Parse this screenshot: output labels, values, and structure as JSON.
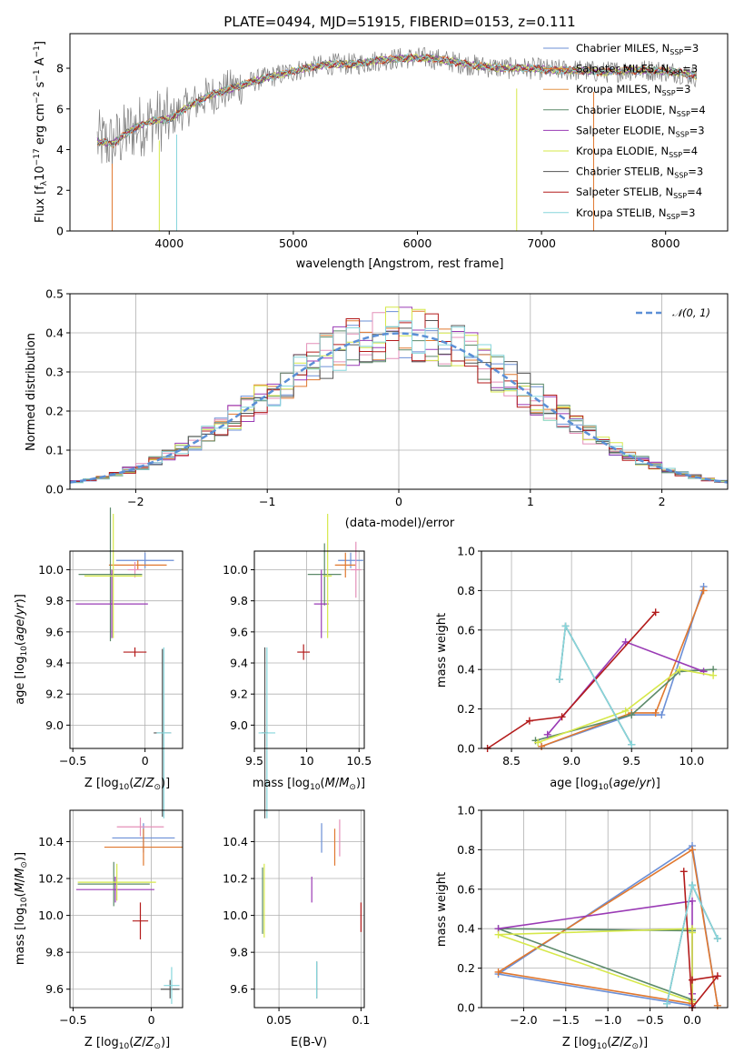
{
  "colors": {
    "Chabrier MILES": "#6b8fd6",
    "Salpeter MILES": "#e0782f",
    "Kroupa MILES": "#e4964a",
    "Chabrier ELODIE": "#5c8a6a",
    "Salpeter ELODIE": "#9a3bb5",
    "Kroupa ELODIE": "#d6e84a",
    "Chabrier STELIB": "#555555",
    "Salpeter STELIB": "#b31b1b",
    "Kroupa STELIB": "#86d6dc",
    "extra_pink": "#e48fb8",
    "gaussian": "#5b8fd6"
  },
  "chart_data": [
    {
      "type": "line",
      "title": "PLATE=0494, MJD=51915, FIBERID=0153, z=0.111",
      "xlabel": "wavelength [Angstrom, rest frame]",
      "ylabel": "Flux [fλ10⁻¹⁷ erg cm⁻² s⁻¹ A⁻¹]",
      "xlim": [
        3200,
        8500
      ],
      "ylim": [
        0,
        9.7
      ],
      "xticks": [
        4000,
        5000,
        6000,
        7000,
        8000
      ],
      "yticks": [
        0,
        2,
        4,
        6,
        8
      ],
      "legend_position": "right",
      "series": [
        {
          "name": "Chabrier MILES, N_SSP=3"
        },
        {
          "name": "Salpeter MILES, N_SSP=3"
        },
        {
          "name": "Kroupa MILES, N_SSP=3"
        },
        {
          "name": "Chabrier ELODIE, N_SSP=4"
        },
        {
          "name": "Salpeter ELODIE, N_SSP=3"
        },
        {
          "name": "Kroupa ELODIE, N_SSP=4"
        },
        {
          "name": "Chabrier STELIB, N_SSP=3"
        },
        {
          "name": "Salpeter STELIB, N_SSP=4"
        },
        {
          "name": "Kroupa STELIB, N_SSP=3"
        }
      ],
      "continuum": {
        "x": [
          3420,
          3550,
          3700,
          3850,
          4000,
          4150,
          4300,
          4500,
          4700,
          4900,
          5100,
          5300,
          5500,
          5700,
          5900,
          6100,
          6300,
          6500,
          6700,
          6900,
          7100,
          7300,
          7500,
          7700,
          7900,
          8100,
          8250
        ],
        "y": [
          4.4,
          4.3,
          5.0,
          5.4,
          5.5,
          6.1,
          6.6,
          7.0,
          7.4,
          7.7,
          8.0,
          8.2,
          8.2,
          8.4,
          8.5,
          8.5,
          8.3,
          8.1,
          8.0,
          8.0,
          7.9,
          7.9,
          7.8,
          7.9,
          7.9,
          7.8,
          7.6
        ]
      }
    },
    {
      "type": "histogram",
      "xlabel": "(data-model)/error",
      "ylabel": "Normed distribution",
      "xlim": [
        -2.5,
        2.5
      ],
      "ylim": [
        0,
        0.5
      ],
      "xticks": [
        -2,
        -1,
        0,
        1,
        2
      ],
      "yticks": [
        0.0,
        0.1,
        0.2,
        0.3,
        0.4,
        0.5
      ],
      "legend": "𝒩(0, 1)",
      "legend_position": "top-right",
      "bin_width": 0.1,
      "grid": true
    },
    {
      "type": "scatter",
      "xlabel": "Z [log₁₀(Z/Z⊙)]",
      "ylabel": "age  [log₁₀(age/yr)]",
      "xlim": [
        -0.52,
        0.26
      ],
      "ylim": [
        8.85,
        10.12
      ],
      "xticks": [
        -0.5,
        0.0
      ],
      "yticks": [
        9.0,
        9.2,
        9.4,
        9.6,
        9.8,
        10.0
      ],
      "points": [
        {
          "x": 0.0,
          "y": 10.06,
          "xerr": 0.2,
          "yerr": 0.05,
          "color": "#6b8fd6"
        },
        {
          "x": -0.05,
          "y": 10.03,
          "xerr": 0.2,
          "yerr": 0.03,
          "color": "#e0782f"
        },
        {
          "x": -0.07,
          "y": 10.0,
          "xerr": 0.05,
          "yerr": 0.05,
          "color": "#e48fb8"
        },
        {
          "x": -0.24,
          "y": 9.97,
          "xerr": 0.22,
          "yerr": 0.43,
          "color": "#5c8a6a"
        },
        {
          "x": -0.23,
          "y": 9.78,
          "xerr": 0.25,
          "yerr": 0.22,
          "color": "#9a3bb5"
        },
        {
          "x": -0.22,
          "y": 9.96,
          "xerr": 0.2,
          "yerr": 0.4,
          "color": "#d6e84a"
        },
        {
          "x": -0.07,
          "y": 9.47,
          "xerr": 0.08,
          "yerr": 0.03,
          "color": "#b31b1b"
        },
        {
          "x": 0.12,
          "y": 8.95,
          "xerr": 0.06,
          "yerr": 0.54,
          "color": "#555555"
        },
        {
          "x": 0.13,
          "y": 8.95,
          "xerr": 0.05,
          "yerr": 0.55,
          "color": "#86d6dc"
        }
      ]
    },
    {
      "type": "scatter",
      "xlabel": "mass [log₁₀(M/M⊙)]",
      "xlim": [
        9.5,
        10.55
      ],
      "ylim": [
        8.85,
        10.12
      ],
      "xticks": [
        9.5,
        10.0,
        10.5
      ],
      "yticks": [
        9.0,
        9.2,
        9.4,
        9.6,
        9.8,
        10.0
      ],
      "points": [
        {
          "x": 10.42,
          "y": 10.06,
          "xerr": 0.12,
          "yerr": 0.05,
          "color": "#6b8fd6"
        },
        {
          "x": 10.37,
          "y": 10.03,
          "xerr": 0.1,
          "yerr": 0.08,
          "color": "#e0782f"
        },
        {
          "x": 10.47,
          "y": 10.0,
          "xerr": 0.05,
          "yerr": 0.18,
          "color": "#e48fb8"
        },
        {
          "x": 10.17,
          "y": 9.97,
          "xerr": 0.16,
          "yerr": 0.2,
          "color": "#5c8a6a"
        },
        {
          "x": 10.14,
          "y": 9.78,
          "xerr": 0.07,
          "yerr": 0.22,
          "color": "#9a3bb5"
        },
        {
          "x": 10.2,
          "y": 9.96,
          "xerr": 0.04,
          "yerr": 0.4,
          "color": "#d6e84a"
        },
        {
          "x": 9.97,
          "y": 9.47,
          "xerr": 0.06,
          "yerr": 0.05,
          "color": "#b31b1b"
        },
        {
          "x": 9.6,
          "y": 8.95,
          "xerr": 0.03,
          "yerr": 0.55,
          "color": "#555555"
        },
        {
          "x": 9.62,
          "y": 8.95,
          "xerr": 0.08,
          "yerr": 0.55,
          "color": "#86d6dc"
        }
      ]
    },
    {
      "type": "line",
      "xlabel": "age  [log₁₀(age/yr)]",
      "ylabel": "mass weight",
      "xlim": [
        8.25,
        10.3
      ],
      "ylim": [
        0,
        1.0
      ],
      "xticks": [
        8.5,
        9.0,
        9.5,
        10.0
      ],
      "yticks": [
        0.0,
        0.2,
        0.4,
        0.6,
        0.8,
        1.0
      ],
      "grid": true,
      "series": [
        {
          "color": "#6b8fd6",
          "x": [
            8.75,
            9.5,
            9.75,
            10.1
          ],
          "y": [
            0.01,
            0.17,
            0.17,
            0.82
          ]
        },
        {
          "color": "#e0782f",
          "x": [
            8.75,
            9.5,
            9.7,
            10.1
          ],
          "y": [
            0.01,
            0.18,
            0.18,
            0.8
          ]
        },
        {
          "color": "#5c8a6a",
          "x": [
            8.7,
            9.5,
            9.9,
            10.18
          ],
          "y": [
            0.04,
            0.17,
            0.39,
            0.4
          ]
        },
        {
          "color": "#9a3bb5",
          "x": [
            8.8,
            9.45,
            10.1
          ],
          "y": [
            0.07,
            0.54,
            0.39
          ]
        },
        {
          "color": "#d6e84a",
          "x": [
            8.72,
            9.45,
            9.9,
            10.18
          ],
          "y": [
            0.03,
            0.19,
            0.4,
            0.37
          ]
        },
        {
          "color": "#b31b1b",
          "x": [
            8.3,
            8.65,
            8.92,
            9.7
          ],
          "y": [
            0.0,
            0.14,
            0.16,
            0.69
          ]
        },
        {
          "color": "#555555",
          "x": [
            8.9,
            8.95,
            9.5
          ],
          "y": [
            0.35,
            0.62,
            0.02
          ]
        },
        {
          "color": "#86d6dc",
          "x": [
            8.9,
            8.95,
            9.5
          ],
          "y": [
            0.35,
            0.62,
            0.02
          ]
        }
      ]
    },
    {
      "type": "scatter",
      "xlabel": "Z [log₁₀(Z/Z⊙)]",
      "ylabel": "mass [log₁₀(M/M⊙)]",
      "xlim": [
        -0.52,
        0.2
      ],
      "ylim": [
        9.5,
        10.57
      ],
      "xticks": [
        -0.5,
        0.0
      ],
      "yticks": [
        9.6,
        9.8,
        10.0,
        10.2,
        10.4
      ],
      "points": [
        {
          "x": -0.05,
          "y": 10.42,
          "xerr": 0.2,
          "yerr": 0.08,
          "color": "#6b8fd6"
        },
        {
          "x": -0.05,
          "y": 10.37,
          "xerr": 0.25,
          "yerr": 0.1,
          "color": "#e0782f"
        },
        {
          "x": -0.07,
          "y": 10.48,
          "xerr": 0.15,
          "yerr": 0.05,
          "color": "#e48fb8"
        },
        {
          "x": -0.24,
          "y": 10.17,
          "xerr": 0.23,
          "yerr": 0.12,
          "color": "#5c8a6a"
        },
        {
          "x": -0.23,
          "y": 10.14,
          "xerr": 0.25,
          "yerr": 0.07,
          "color": "#9a3bb5"
        },
        {
          "x": -0.22,
          "y": 10.18,
          "xerr": 0.25,
          "yerr": 0.1,
          "color": "#d6e84a"
        },
        {
          "x": -0.07,
          "y": 9.97,
          "xerr": 0.05,
          "yerr": 0.1,
          "color": "#b31b1b"
        },
        {
          "x": 0.12,
          "y": 9.6,
          "xerr": 0.06,
          "yerr": 0.05,
          "color": "#555555"
        },
        {
          "x": 0.13,
          "y": 9.62,
          "xerr": 0.05,
          "yerr": 0.1,
          "color": "#86d6dc"
        }
      ]
    },
    {
      "type": "scatter",
      "xlabel": "E(B-V)",
      "xlim": [
        0.035,
        0.102
      ],
      "ylim": [
        9.5,
        10.57
      ],
      "xticks": [
        0.05,
        0.1
      ],
      "yticks": [
        9.6,
        9.8,
        10.0,
        10.2,
        10.4
      ],
      "points": [
        {
          "x": 0.076,
          "y": 10.42,
          "yerr": 0.08,
          "color": "#6b8fd6"
        },
        {
          "x": 0.084,
          "y": 10.37,
          "yerr": 0.1,
          "color": "#e0782f"
        },
        {
          "x": 0.087,
          "y": 10.42,
          "yerr": 0.1,
          "color": "#e48fb8"
        },
        {
          "x": 0.04,
          "y": 10.08,
          "yerr": 0.18,
          "color": "#5c8a6a"
        },
        {
          "x": 0.07,
          "y": 10.14,
          "yerr": 0.07,
          "color": "#9a3bb5"
        },
        {
          "x": 0.041,
          "y": 10.08,
          "yerr": 0.2,
          "color": "#d6e84a"
        },
        {
          "x": 0.1,
          "y": 9.99,
          "yerr": 0.08,
          "color": "#b31b1b"
        },
        {
          "x": 0.073,
          "y": 9.65,
          "yerr": 0.1,
          "color": "#555555"
        },
        {
          "x": 0.073,
          "y": 9.65,
          "yerr": 0.1,
          "color": "#86d6dc"
        }
      ]
    },
    {
      "type": "line",
      "xlabel": "Z [log₁₀(Z/Z⊙)]",
      "ylabel": "mass weight",
      "xlim": [
        -2.5,
        0.42
      ],
      "ylim": [
        0,
        1.0
      ],
      "xticks": [
        -2.0,
        -1.5,
        -1.0,
        -0.5,
        0.0
      ],
      "yticks": [
        0.0,
        0.2,
        0.4,
        0.6,
        0.8,
        1.0
      ],
      "grid": true,
      "series": [
        {
          "color": "#6b8fd6",
          "x": [
            0.3,
            0.0,
            -2.3,
            0.0
          ],
          "y": [
            0.01,
            0.82,
            0.17,
            0.01
          ]
        },
        {
          "color": "#e0782f",
          "x": [
            0.3,
            0.0,
            -2.3,
            0.0
          ],
          "y": [
            0.01,
            0.8,
            0.18,
            0.02
          ]
        },
        {
          "color": "#5c8a6a",
          "x": [
            0.0,
            -2.3,
            0.0,
            0.0
          ],
          "y": [
            0.39,
            0.4,
            0.04,
            0.39
          ]
        },
        {
          "color": "#9a3bb5",
          "x": [
            -2.3,
            0.0,
            0.0
          ],
          "y": [
            0.4,
            0.54,
            0.07
          ]
        },
        {
          "color": "#d6e84a",
          "x": [
            0.0,
            -2.3,
            0.0,
            0.0
          ],
          "y": [
            0.4,
            0.37,
            0.03,
            0.38
          ]
        },
        {
          "color": "#b31b1b",
          "x": [
            -0.1,
            0.0,
            0.3,
            0.0
          ],
          "y": [
            0.69,
            0.0,
            0.16,
            0.14
          ]
        },
        {
          "color": "#555555",
          "x": [
            0.0,
            -0.3,
            0.0,
            0.3
          ],
          "y": [
            0.62,
            0.02,
            0.62,
            0.35
          ]
        },
        {
          "color": "#86d6dc",
          "x": [
            0.0,
            -0.3,
            0.0,
            0.3
          ],
          "y": [
            0.62,
            0.02,
            0.62,
            0.35
          ]
        }
      ]
    }
  ]
}
